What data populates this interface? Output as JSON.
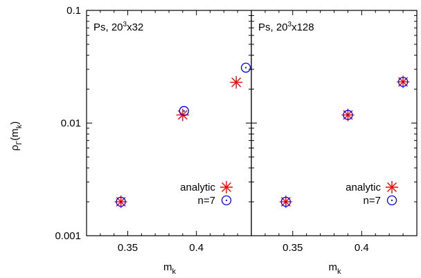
{
  "chart_data": [
    {
      "type": "scatter",
      "title": "Ps, 20^3x32",
      "title_main": "Ps, 20",
      "title_sup": "3",
      "title_tail": "x32",
      "xlabel_main": "m",
      "xlabel_sub": "k",
      "ylabel_main": "ρ",
      "ylabel_sub": "Γ",
      "ylabel_tail": "(m",
      "ylabel_sub2": "k",
      "ylabel_close": ")",
      "y_scale": "log",
      "xlim": [
        0.32,
        0.44
      ],
      "ylim": [
        0.001,
        0.1
      ],
      "x_ticks": [
        0.35,
        0.4
      ],
      "x_tick_labels": [
        "0.35",
        "0.4"
      ],
      "y_ticks": [
        0.001,
        0.01,
        0.1
      ],
      "y_tick_labels": [
        "0.001",
        "0.01",
        "0.1"
      ],
      "legend_position": "bottom-right",
      "series": [
        {
          "name": "analytic",
          "marker": "star",
          "color": "#ff0000",
          "x": [
            0.345,
            0.39,
            0.429
          ],
          "y": [
            0.002,
            0.0118,
            0.023
          ]
        },
        {
          "name": "n=7",
          "marker": "circle-dot",
          "color": "#0000ff",
          "x": [
            0.345,
            0.391,
            0.436
          ],
          "y": [
            0.002,
            0.0128,
            0.031
          ]
        }
      ]
    },
    {
      "type": "scatter",
      "title": "Ps, 20^3x128",
      "title_main": "Ps, 20",
      "title_sup": "3",
      "title_tail": "x128",
      "xlabel_main": "m",
      "xlabel_sub": "k",
      "y_scale": "log",
      "xlim": [
        0.32,
        0.44
      ],
      "ylim": [
        0.001,
        0.1
      ],
      "x_ticks": [
        0.35,
        0.4
      ],
      "x_tick_labels": [
        "0.35",
        "0.4"
      ],
      "y_ticks": [
        0.001,
        0.01,
        0.1
      ],
      "legend_position": "bottom-right",
      "series": [
        {
          "name": "analytic",
          "marker": "star",
          "color": "#ff0000",
          "x": [
            0.345,
            0.39,
            0.43
          ],
          "y": [
            0.002,
            0.0118,
            0.0232
          ]
        },
        {
          "name": "n=7",
          "marker": "circle-dot",
          "color": "#0000ff",
          "x": [
            0.345,
            0.39,
            0.43
          ],
          "y": [
            0.002,
            0.0118,
            0.0232
          ]
        }
      ]
    }
  ]
}
